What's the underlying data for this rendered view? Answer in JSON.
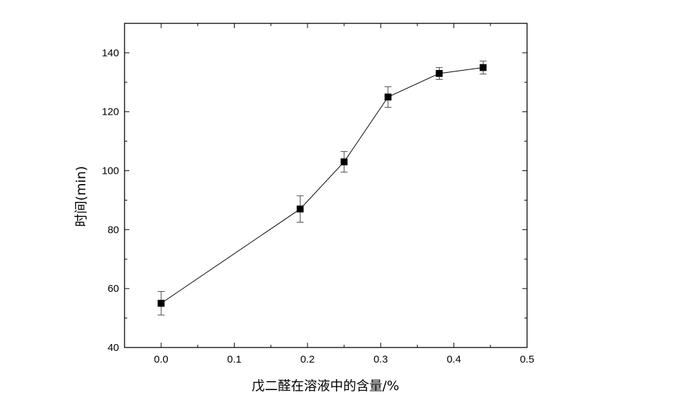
{
  "chart_data": {
    "type": "line",
    "xlabel": "戊二醛在溶液中的含量/%",
    "ylabel": "时间(min)",
    "xlim": [
      -0.05,
      0.5
    ],
    "ylim": [
      40,
      150
    ],
    "x_ticks": [
      0.0,
      0.1,
      0.2,
      0.3,
      0.4,
      0.5
    ],
    "x_tick_labels": [
      "0.0",
      "0.1",
      "0.2",
      "0.3",
      "0.4",
      "0.5"
    ],
    "y_ticks": [
      40,
      60,
      80,
      100,
      120,
      140
    ],
    "y_tick_labels": [
      "40",
      "60",
      "80",
      "100",
      "120",
      "140"
    ],
    "grid": false,
    "series": [
      {
        "x": [
          0.0,
          0.19,
          0.25,
          0.31,
          0.38,
          0.44
        ],
        "y": [
          55,
          87,
          103,
          125,
          133,
          135
        ],
        "error": [
          4,
          4.5,
          3.5,
          3.5,
          2,
          2.2
        ],
        "marker": "square",
        "color": "#000000"
      }
    ]
  }
}
